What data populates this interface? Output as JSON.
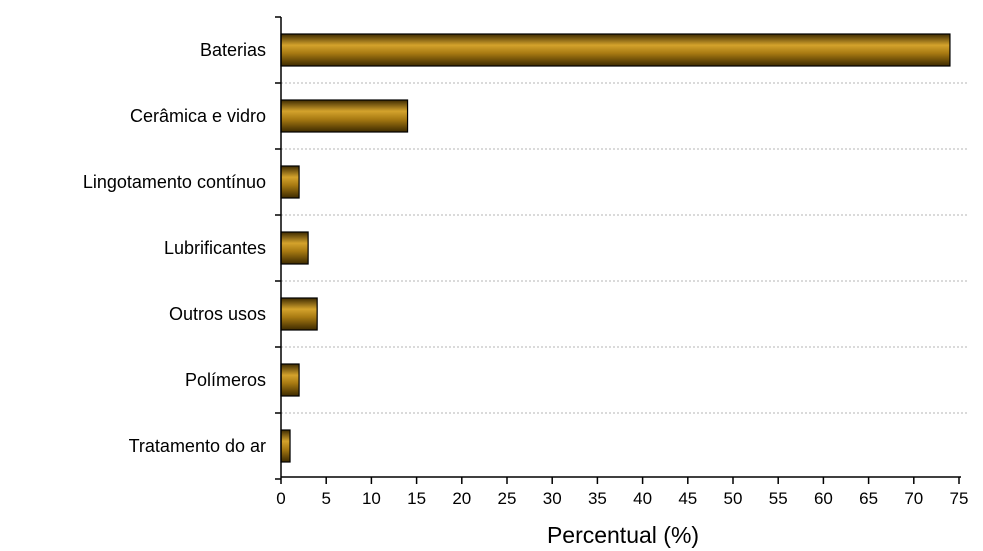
{
  "chart_data": {
    "type": "bar",
    "orientation": "horizontal",
    "categories": [
      "Baterias",
      "Cerâmica e vidro",
      "Lingotamento contínuo",
      "Lubrificantes",
      "Outros usos",
      "Polímeros",
      "Tratamento do ar"
    ],
    "values": [
      74,
      14,
      2,
      3,
      4,
      2,
      1
    ],
    "xlabel": "Percentual (%)",
    "ylabel": "",
    "title": "",
    "xlim": [
      0,
      75
    ],
    "xticks": [
      0,
      5,
      10,
      15,
      20,
      25,
      30,
      35,
      40,
      45,
      50,
      55,
      60,
      65,
      70,
      75
    ],
    "grid": "horizontal dotted separators",
    "bar_color": "#8B6508",
    "bar_highlight": "#D4A32C",
    "bar_shadow": "#4A3300"
  }
}
